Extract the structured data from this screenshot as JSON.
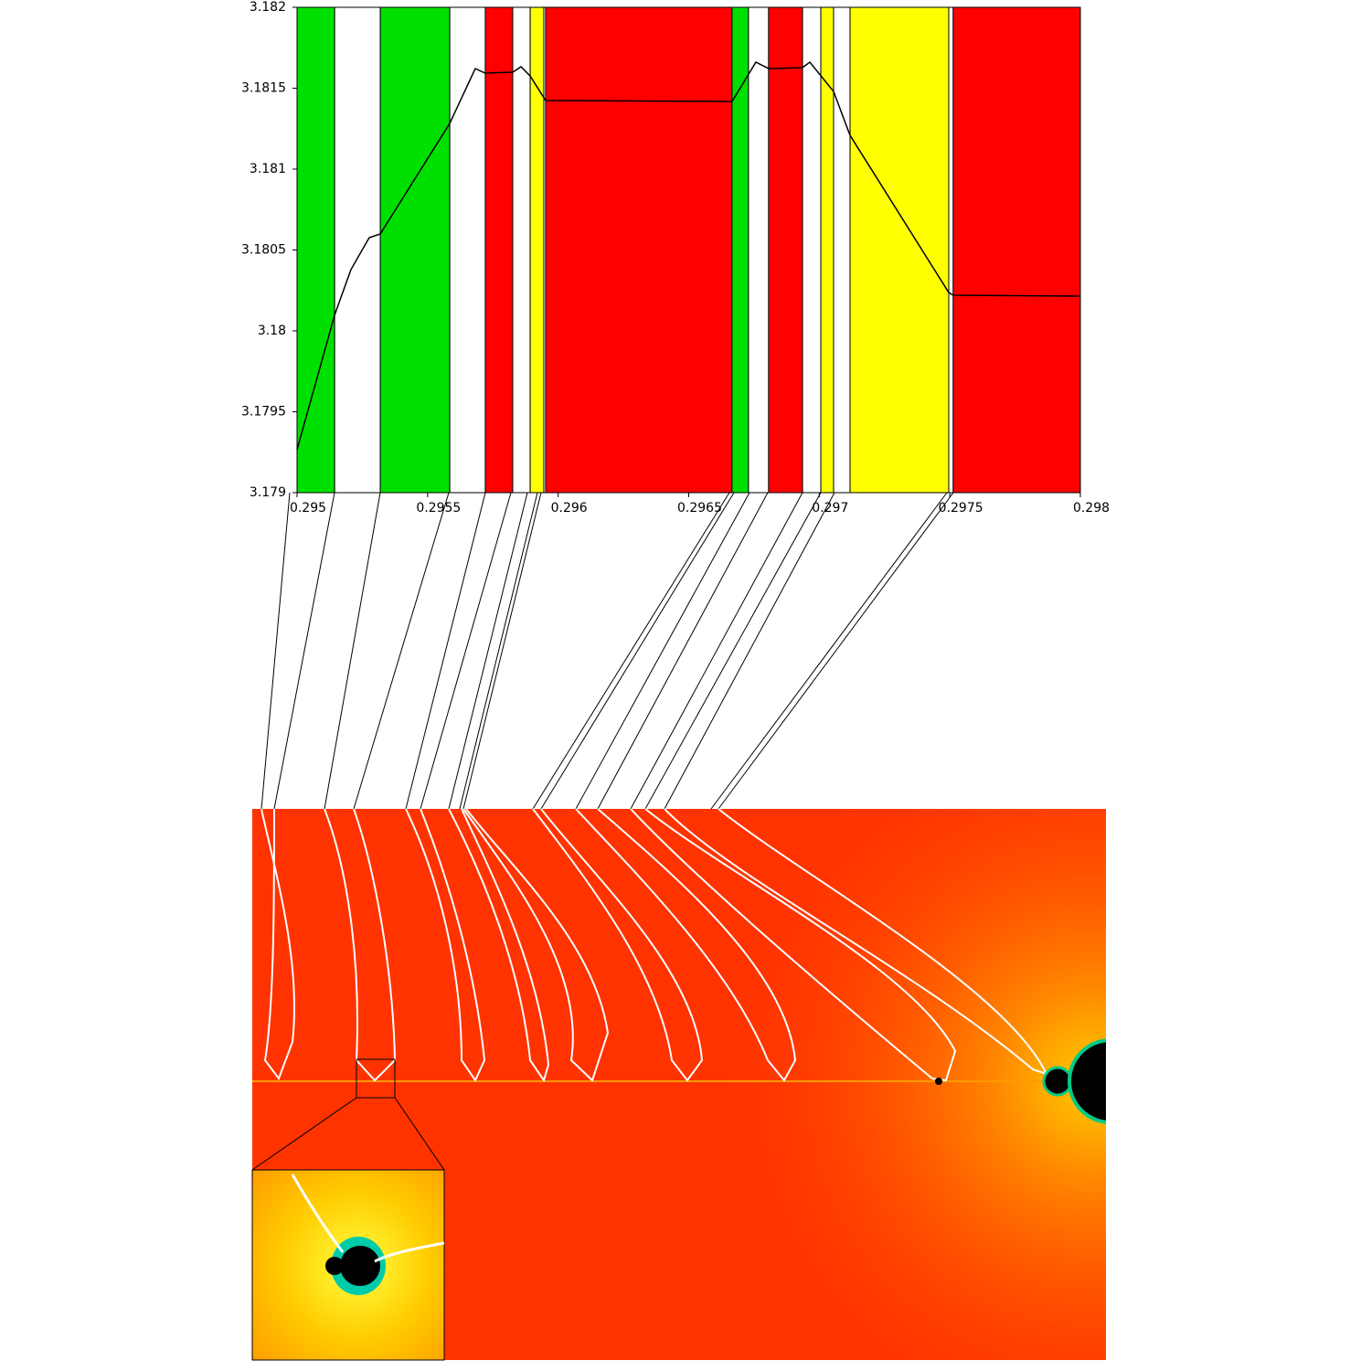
{
  "chart_data": {
    "type": "line",
    "xlim": [
      0.295,
      0.298
    ],
    "ylim": [
      3.179,
      3.182
    ],
    "xticks": [
      0.295,
      0.2955,
      0.296,
      0.2965,
      0.297,
      0.2975,
      0.298
    ],
    "yticks": [
      3.179,
      3.1795,
      3.18,
      3.1805,
      3.181,
      3.1815,
      3.182
    ],
    "line_color": "#000000",
    "bands": [
      {
        "start": 0.295,
        "end": 0.295144,
        "color": "#00e000"
      },
      {
        "start": 0.295144,
        "end": 0.295319,
        "color": "#ffffff"
      },
      {
        "start": 0.295319,
        "end": 0.295585,
        "color": "#00e000"
      },
      {
        "start": 0.295585,
        "end": 0.295721,
        "color": "#ffffff"
      },
      {
        "start": 0.295721,
        "end": 0.295826,
        "color": "#ff0000"
      },
      {
        "start": 0.295826,
        "end": 0.295893,
        "color": "#ffffff"
      },
      {
        "start": 0.295893,
        "end": 0.295945,
        "color": "#ffff00"
      },
      {
        "start": 0.295952,
        "end": 0.296666,
        "color": "#ff0000"
      },
      {
        "start": 0.296666,
        "end": 0.296729,
        "color": "#00e000"
      },
      {
        "start": 0.296729,
        "end": 0.296806,
        "color": "#ffffff"
      },
      {
        "start": 0.296806,
        "end": 0.296936,
        "color": "#ff0000"
      },
      {
        "start": 0.296936,
        "end": 0.297006,
        "color": "#ffffff"
      },
      {
        "start": 0.297006,
        "end": 0.297055,
        "color": "#ffff00"
      },
      {
        "start": 0.297055,
        "end": 0.297118,
        "color": "#ffffff"
      },
      {
        "start": 0.297118,
        "end": 0.297496,
        "color": "#ffff00"
      },
      {
        "start": 0.297496,
        "end": 0.297513,
        "color": "#ffffff"
      },
      {
        "start": 0.297513,
        "end": 0.298,
        "color": "#ff0000"
      }
    ],
    "x": [
      0.295,
      0.2951435,
      0.2952065,
      0.2952765,
      0.2953186,
      0.2955846,
      0.2956826,
      0.2957211,
      0.2958261,
      0.2958577,
      0.2958927,
      0.2959522,
      0.2966663,
      0.2967573,
      0.2968063,
      0.2969358,
      0.2969638,
      0.2970548,
      0.2971178,
      0.2974959,
      0.2975134,
      0.298
    ],
    "values": [
      3.179266,
      3.180096,
      3.180379,
      3.180576,
      3.180599,
      3.181282,
      3.181621,
      3.181593,
      3.181599,
      3.181633,
      3.181576,
      3.181424,
      3.181418,
      3.181661,
      3.181621,
      3.181627,
      3.181661,
      3.18148,
      3.181209,
      3.180237,
      3.18022,
      3.180215
    ]
  }
}
